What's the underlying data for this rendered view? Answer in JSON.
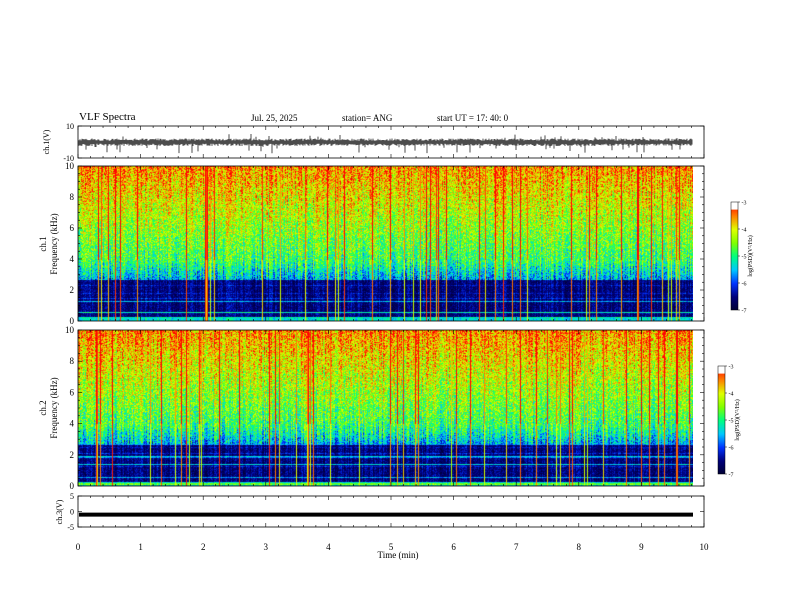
{
  "header": {
    "title": "VLF Spectra",
    "date": "Jul. 25, 2025",
    "station": "station= ANG",
    "start": "start  UT  =   17: 40: 0"
  },
  "chart_data": [
    {
      "type": "line",
      "panel": "ch1-waveform",
      "ylabel": "ch.1(V)",
      "ylim": [
        -10,
        10
      ],
      "yticks": [
        "10",
        "-10"
      ],
      "xlim": [
        0,
        10
      ],
      "baseline": 0,
      "note_values": "dense noisy waveform roughly between -3 and 3 V with spikes to about -6 V",
      "color": "#000000"
    },
    {
      "type": "heatmap",
      "panel": "ch1-spectrogram",
      "ylabel": "ch.1\nFrequency  (kHz)",
      "ylim": [
        0,
        10
      ],
      "yticks": [
        "0",
        "2",
        "4",
        "6",
        "8",
        "10"
      ],
      "xlim": [
        0,
        9.8
      ],
      "colorbar": {
        "label": "log(PSD)(V²/Hz)",
        "range": [
          -7,
          -3
        ],
        "ticks": [
          "-3",
          "-4",
          "-5",
          "-6",
          "-7"
        ]
      }
    },
    {
      "type": "heatmap",
      "panel": "ch2-spectrogram",
      "ylabel": "ch.2\nFrequency  (kHz)",
      "ylim": [
        0,
        10
      ],
      "yticks": [
        "0",
        "2",
        "4",
        "6",
        "8",
        "10"
      ],
      "xlim": [
        0,
        9.8
      ],
      "colorbar": {
        "label": "log(PSD)(V²/Hz)",
        "range": [
          -7,
          -3
        ],
        "ticks": [
          "-3",
          "-4",
          "-5",
          "-6",
          "-7"
        ]
      }
    },
    {
      "type": "line",
      "panel": "ch3-waveform",
      "ylabel": "ch.3(V)",
      "ylim": [
        -5,
        5
      ],
      "yticks": [
        "5",
        "0",
        "-5"
      ],
      "xlim": [
        0,
        10
      ],
      "value": -1,
      "color": "#000000"
    }
  ],
  "x_axis": {
    "label": "Time  (min)",
    "range": [
      0,
      10
    ],
    "ticks": [
      "0",
      "1",
      "2",
      "3",
      "4",
      "5",
      "6",
      "7",
      "8",
      "9",
      "10"
    ]
  },
  "colormap": [
    "#000033",
    "#00007a",
    "#0033ff",
    "#00c8ff",
    "#00ff80",
    "#80ff00",
    "#e0ff00",
    "#ff8000",
    "#ff0000",
    "#ffffff"
  ]
}
